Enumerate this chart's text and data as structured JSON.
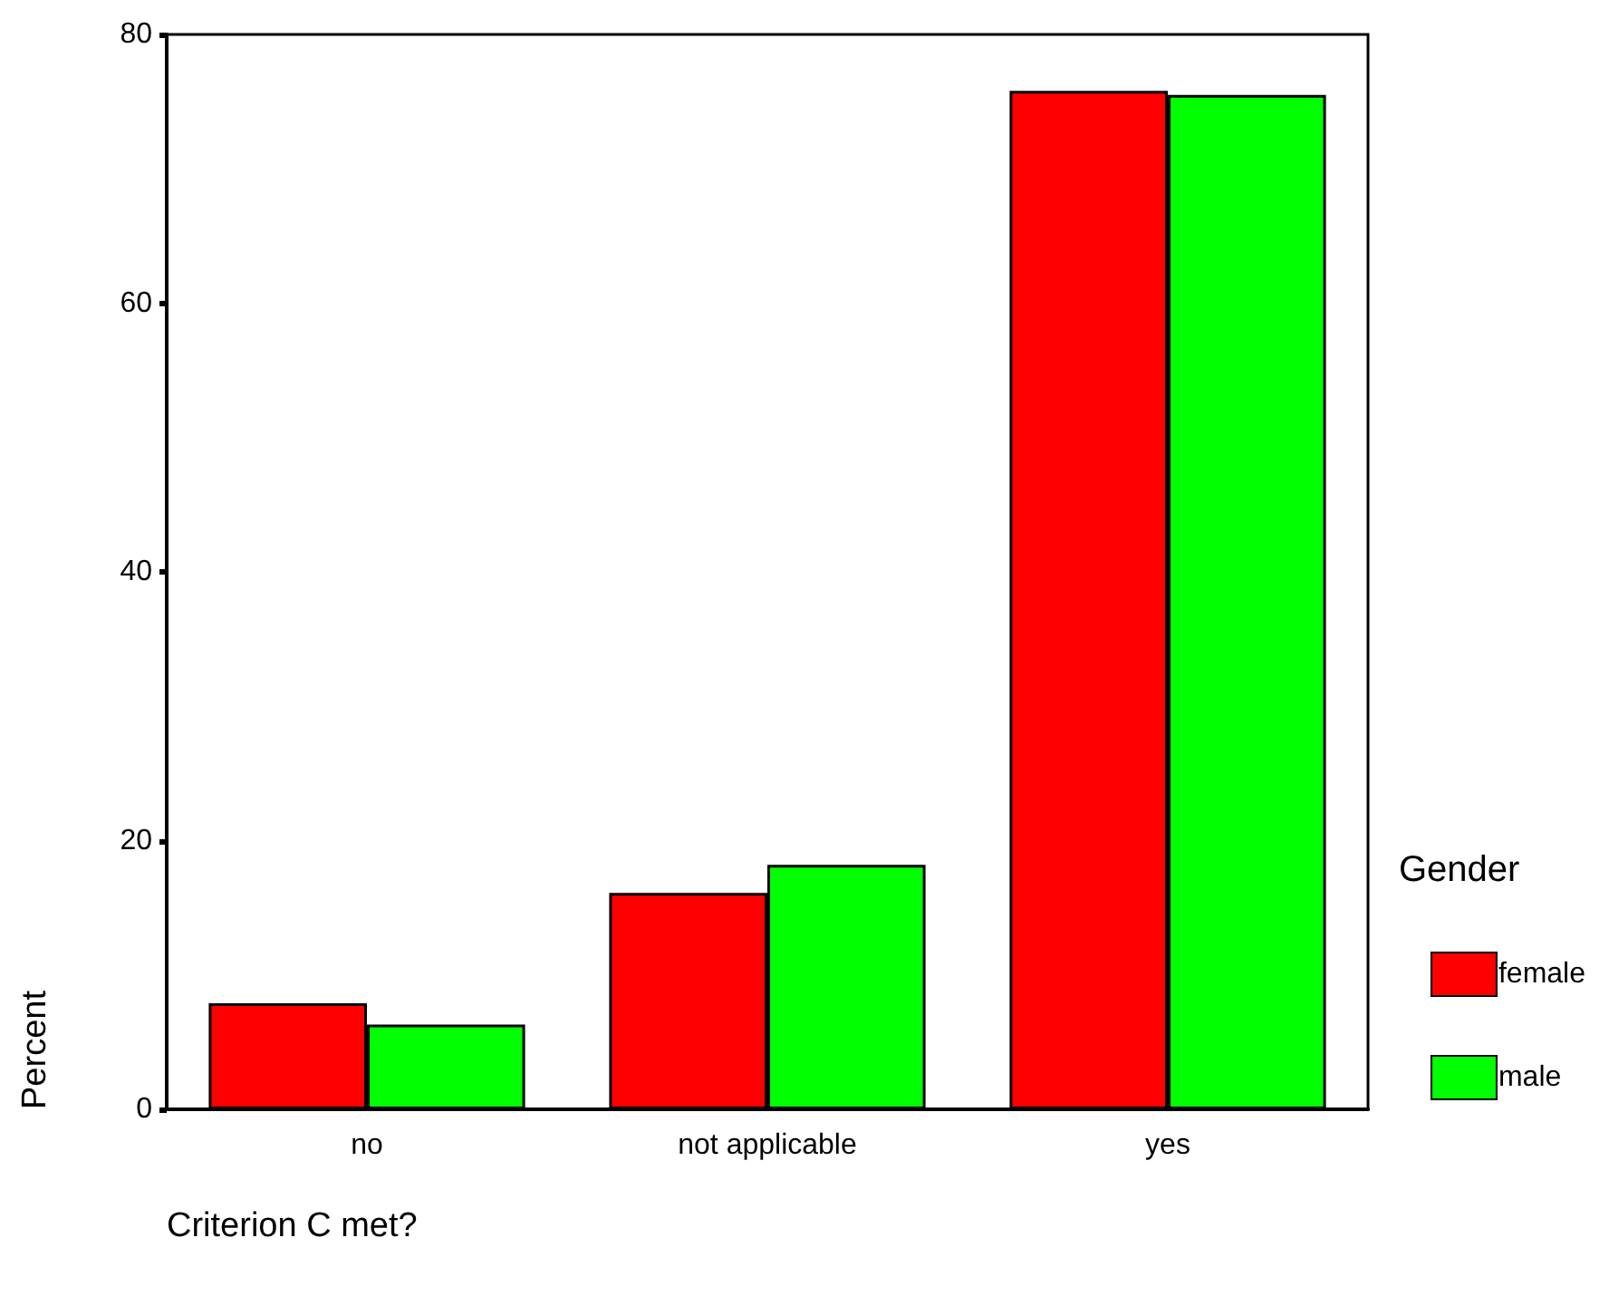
{
  "chart_data": {
    "type": "bar",
    "xlabel": "Criterion C met?",
    "ylabel": "Percent",
    "legend_title": "Gender",
    "categories": [
      "no",
      "not applicable",
      "yes"
    ],
    "series": [
      {
        "name": "female",
        "color": "#ff0000",
        "values": [
          7.9,
          16.1,
          75.8
        ]
      },
      {
        "name": "male",
        "color": "#00ff00",
        "values": [
          6.3,
          18.2,
          75.5
        ]
      }
    ],
    "ylim": [
      0,
      80
    ],
    "yticks": [
      0,
      20,
      40,
      60,
      80
    ],
    "grid": false,
    "legend": "right"
  }
}
